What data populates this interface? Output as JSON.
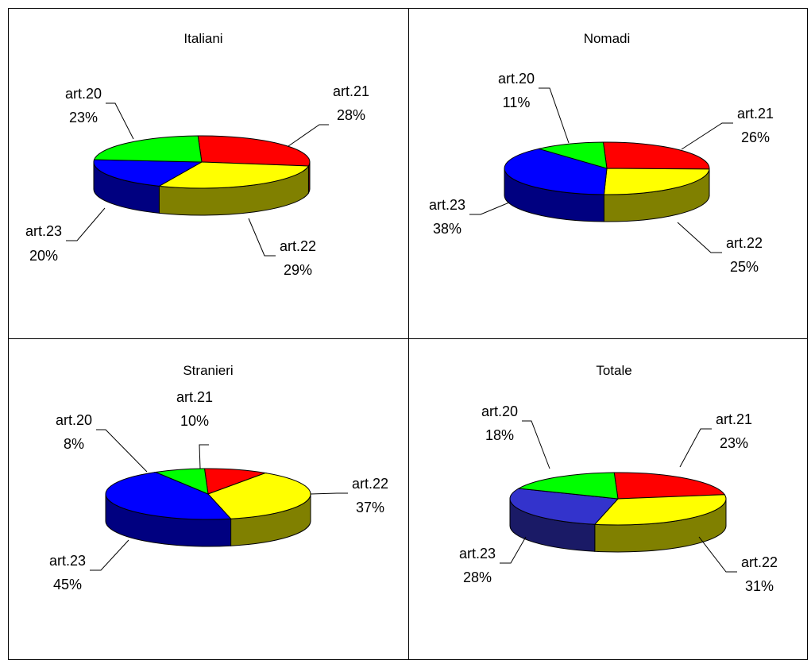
{
  "chart_data": [
    {
      "type": "pie",
      "title": "Italiani",
      "slices": [
        {
          "label": "art.21",
          "value": 28,
          "percent_text": "28%",
          "color": "#ff0000"
        },
        {
          "label": "art.22",
          "value": 29,
          "percent_text": "29%",
          "color": "#ffff00"
        },
        {
          "label": "art.23",
          "value": 20,
          "percent_text": "20%",
          "color": "#0000ff"
        },
        {
          "label": "art.20",
          "value": 23,
          "percent_text": "23%",
          "color": "#00ff00"
        }
      ]
    },
    {
      "type": "pie",
      "title": "Nomadi",
      "slices": [
        {
          "label": "art.21",
          "value": 26,
          "percent_text": "26%",
          "color": "#ff0000"
        },
        {
          "label": "art.22",
          "value": 25,
          "percent_text": "25%",
          "color": "#ffff00"
        },
        {
          "label": "art.23",
          "value": 38,
          "percent_text": "38%",
          "color": "#0000ff"
        },
        {
          "label": "art.20",
          "value": 11,
          "percent_text": "11%",
          "color": "#00ff00"
        }
      ]
    },
    {
      "type": "pie",
      "title": "Stranieri",
      "slices": [
        {
          "label": "art.21",
          "value": 10,
          "percent_text": "10%",
          "color": "#ff0000"
        },
        {
          "label": "art.22",
          "value": 37,
          "percent_text": "37%",
          "color": "#ffff00"
        },
        {
          "label": "art.23",
          "value": 45,
          "percent_text": "45%",
          "color": "#0000ff"
        },
        {
          "label": "art.20",
          "value": 8,
          "percent_text": "8%",
          "color": "#00ff00"
        }
      ]
    },
    {
      "type": "pie",
      "title": "Totale",
      "slices": [
        {
          "label": "art.21",
          "value": 23,
          "percent_text": "23%",
          "color": "#ff0000"
        },
        {
          "label": "art.22",
          "value": 31,
          "percent_text": "31%",
          "color": "#ffff00"
        },
        {
          "label": "art.23",
          "value": 28,
          "percent_text": "28%",
          "color": "#3333cc"
        },
        {
          "label": "art.20",
          "value": 18,
          "percent_text": "18%",
          "color": "#00ff00"
        }
      ]
    }
  ]
}
